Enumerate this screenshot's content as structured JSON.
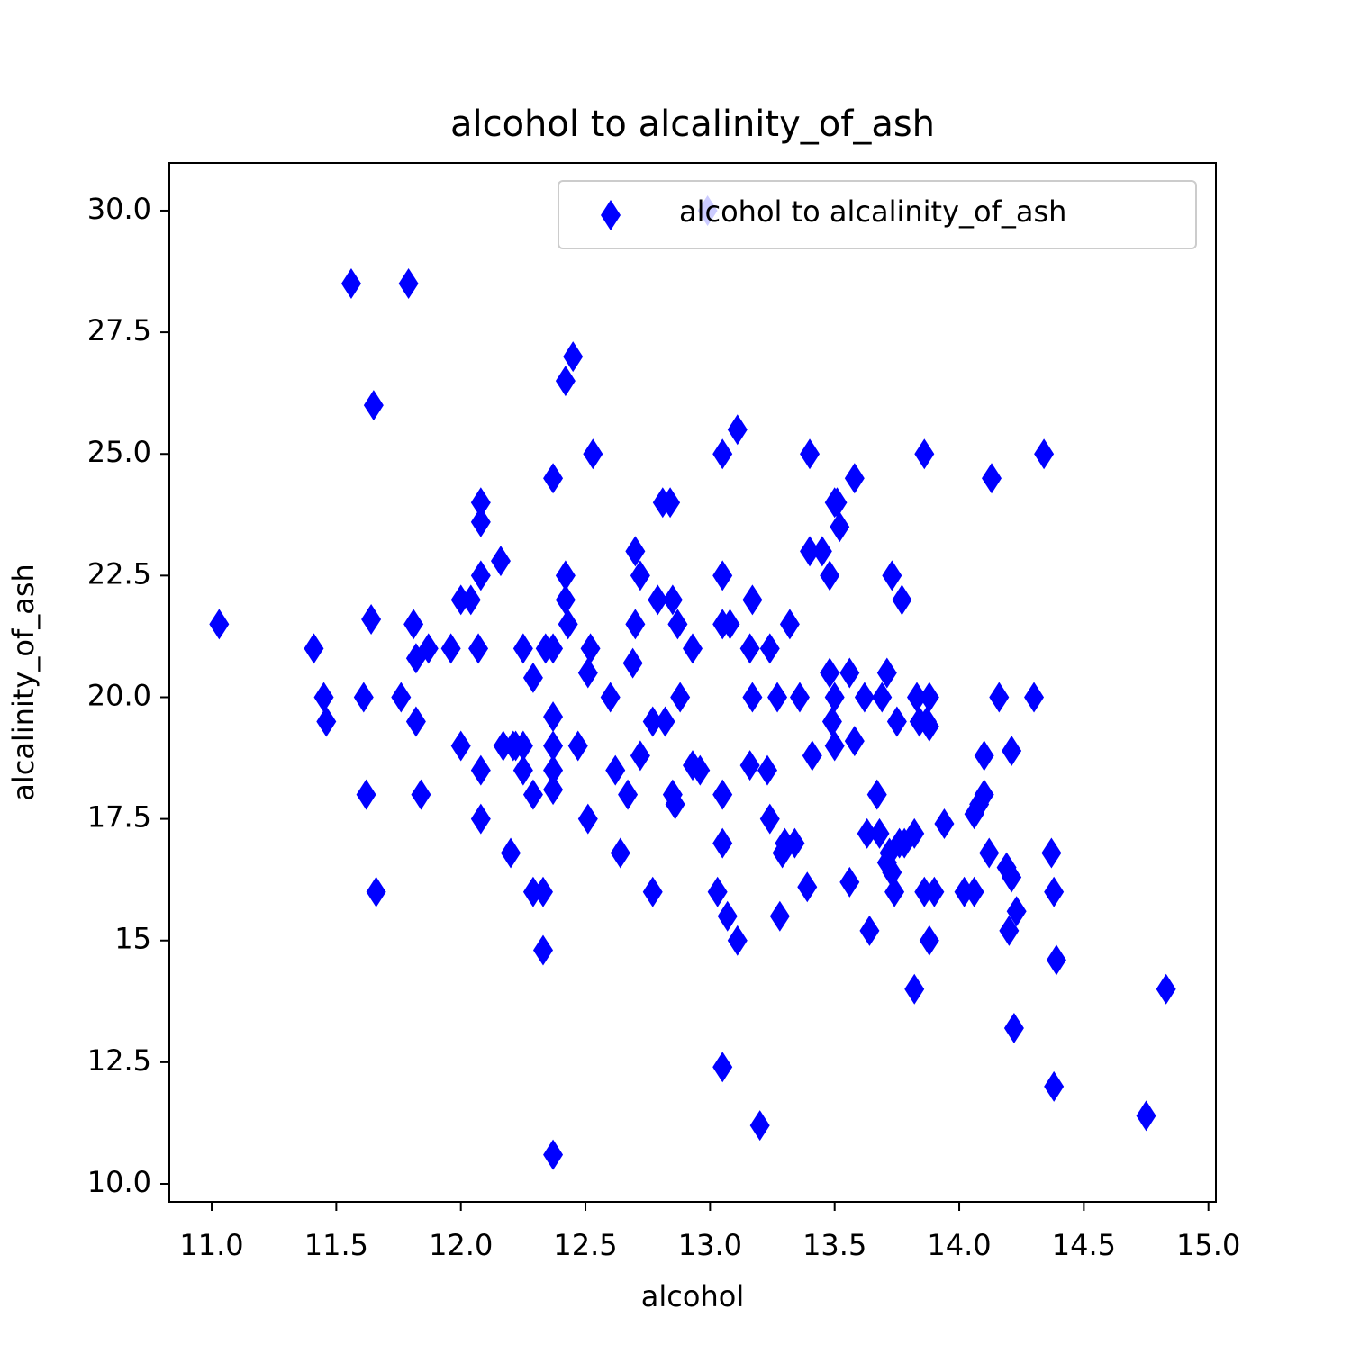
{
  "chart_data": {
    "type": "scatter",
    "title": "alcohol to alcalinity_of_ash",
    "x_label": "alcohol",
    "y_label": "alcalinity_of_ash",
    "legend": "upper right",
    "marker": "thin_diamond",
    "x": [
      11.03,
      11.41,
      11.45,
      11.46,
      11.56,
      11.61,
      11.62,
      11.64,
      11.65,
      11.66,
      11.76,
      11.79,
      11.81,
      11.82,
      11.82,
      11.84,
      11.87,
      11.96,
      12.0,
      12.0,
      12.04,
      12.07,
      12.08,
      12.08,
      12.08,
      12.08,
      12.08,
      12.16,
      12.17,
      12.2,
      12.21,
      12.22,
      12.25,
      12.25,
      12.25,
      12.29,
      12.29,
      12.29,
      12.33,
      12.33,
      12.34,
      12.37,
      12.37,
      12.37,
      12.37,
      12.37,
      12.37,
      12.37,
      12.42,
      12.42,
      12.42,
      12.43,
      12.45,
      12.47,
      12.51,
      12.51,
      12.52,
      12.53,
      12.6,
      12.62,
      12.64,
      12.67,
      12.69,
      12.7,
      12.7,
      12.72,
      12.72,
      12.77,
      12.77,
      12.79,
      12.81,
      12.82,
      12.84,
      12.85,
      12.85,
      12.86,
      12.87,
      12.88,
      12.93,
      12.93,
      12.96,
      12.99,
      13.03,
      13.05,
      13.05,
      13.05,
      13.05,
      13.05,
      13.05,
      13.07,
      13.08,
      13.11,
      13.11,
      13.16,
      13.16,
      13.17,
      13.17,
      13.2,
      13.23,
      13.24,
      13.24,
      13.27,
      13.28,
      13.29,
      13.3,
      13.32,
      13.34,
      13.36,
      13.39,
      13.4,
      13.4,
      13.41,
      13.45,
      13.48,
      13.48,
      13.49,
      13.5,
      13.5,
      13.5,
      13.51,
      13.52,
      13.56,
      13.56,
      13.58,
      13.58,
      13.62,
      13.63,
      13.64,
      13.67,
      13.68,
      13.69,
      13.71,
      13.71,
      13.72,
      13.73,
      13.73,
      13.74,
      13.75,
      13.76,
      13.77,
      13.78,
      13.82,
      13.82,
      13.83,
      13.84,
      13.86,
      13.86,
      13.87,
      13.88,
      13.88,
      13.88,
      13.9,
      13.94,
      14.02,
      14.06,
      14.06,
      14.08,
      14.1,
      14.1,
      14.12,
      14.13,
      14.16,
      14.19,
      14.2,
      14.21,
      14.21,
      14.22,
      14.23,
      14.3,
      14.34,
      14.37,
      14.38,
      14.38,
      14.39,
      14.75,
      14.83
    ],
    "series": [
      {
        "name": "alcohol to alcalinity_of_ash",
        "color": "#0000ff",
        "values": [
          21.5,
          21,
          20,
          19.5,
          28.5,
          20,
          18,
          21.6,
          26,
          16,
          20,
          28.5,
          21.5,
          20.8,
          19.5,
          18,
          21,
          21,
          19,
          22,
          22,
          21,
          22.5,
          24,
          23.6,
          18.5,
          17.5,
          22.8,
          19,
          16.8,
          19,
          19,
          21,
          19,
          18.5,
          20.4,
          18,
          16,
          16,
          14.8,
          21,
          21,
          19.6,
          19,
          18.5,
          18.1,
          24.5,
          10.6,
          26.5,
          22.5,
          22,
          21.5,
          27,
          19,
          20.5,
          17.5,
          21,
          25,
          20,
          18.5,
          16.8,
          18,
          20.7,
          21.5,
          23,
          22.5,
          18.8,
          16,
          19.5,
          22,
          24,
          19.5,
          24,
          22,
          18,
          17.8,
          21.5,
          20,
          21,
          18.6,
          18.5,
          30,
          16,
          25,
          22.5,
          21.5,
          18,
          17,
          12.4,
          15.5,
          21.5,
          25.5,
          15,
          21,
          18.6,
          22,
          20,
          11.2,
          18.5,
          21,
          17.5,
          20,
          15.5,
          16.8,
          17,
          21.5,
          17,
          20,
          16.1,
          25,
          23,
          18.8,
          23,
          22.5,
          20.5,
          19.5,
          24,
          20,
          19,
          24,
          23.5,
          20.5,
          16.2,
          19.1,
          24.5,
          20,
          17.2,
          15.2,
          18,
          17.2,
          20,
          20.5,
          16.6,
          16.8,
          22.5,
          16.4,
          16,
          19.5,
          17,
          22,
          17,
          14,
          17.2,
          20,
          19.5,
          25,
          16,
          19.5,
          20,
          19.4,
          15,
          16,
          17.4,
          16,
          17.6,
          16,
          17.8,
          18.8,
          18,
          16.8,
          24.5,
          20,
          16.5,
          15.2,
          18.9,
          16.3,
          13.2,
          15.6,
          20,
          25,
          16.8,
          16,
          12,
          14.6,
          11.4,
          14
        ]
      }
    ],
    "xlim": [
      10.83,
      15.03
    ],
    "ylim": [
      9.63,
      30.98
    ],
    "xticks": [
      {
        "value": 11,
        "label": "11.0"
      },
      {
        "value": 11.5,
        "label": "11.5"
      },
      {
        "value": 12,
        "label": "12.0"
      },
      {
        "value": 12.5,
        "label": "12.5"
      },
      {
        "value": 13,
        "label": "13.0"
      },
      {
        "value": 13.5,
        "label": "13.5"
      },
      {
        "value": 14,
        "label": "14.0"
      },
      {
        "value": 14.5,
        "label": "14.5"
      },
      {
        "value": 15,
        "label": "15.0"
      }
    ],
    "yticks": [
      {
        "value": 10,
        "label": "10.0"
      },
      12.5,
      15,
      {
        "value": 17.5,
        "label": "17.5"
      },
      {
        "value": 20,
        "label": "20.0"
      },
      22.5,
      {
        "value": 25,
        "label": "25.0"
      },
      27.5,
      {
        "value": 30,
        "label": "30.0"
      }
    ]
  }
}
